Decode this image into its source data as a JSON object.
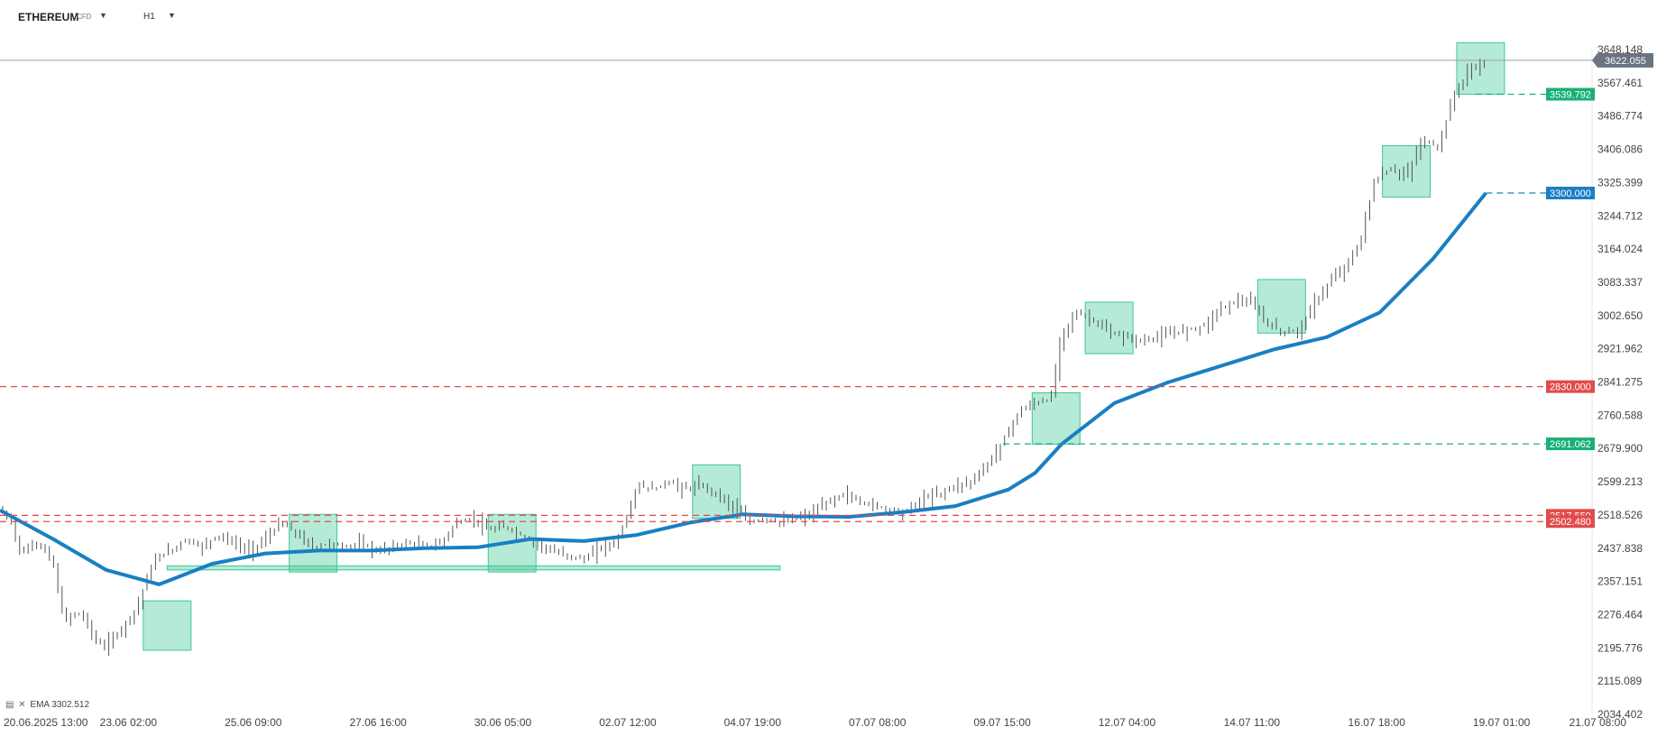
{
  "header": {
    "symbol": "ETHEREUM",
    "symbol_type": "CFD",
    "timeframe": "H1"
  },
  "legend": {
    "indicator_name": "EMA",
    "indicator_value": "3302.512"
  },
  "colors": {
    "ema": "#1a7fc4",
    "support_zone": "#3cc894",
    "resistance_line": "#e24b4b",
    "target_line": "#19b076",
    "ema_tag": "#1a7fc4",
    "current_tag": "#6b7280",
    "candle": "#444444"
  },
  "chart_data": {
    "type": "candlestick",
    "instrument": "ETHEREUM",
    "timeframe": "H1",
    "x_tick_labels": [
      "20.06.2025 13:00",
      "23.06 02:00",
      "25.06 09:00",
      "27.06 16:00",
      "30.06 05:00",
      "02.07 12:00",
      "04.07 19:00",
      "07.07 08:00",
      "09.07 15:00",
      "12.07 04:00",
      "14.07 11:00",
      "16.07 18:00",
      "19.07 01:00",
      "21.07 08:00"
    ],
    "y_tick_labels": [
      "3648.148",
      "3567.461",
      "3486.774",
      "3406.086",
      "3325.399",
      "3244.712",
      "3164.024",
      "3083.337",
      "3002.650",
      "2921.962",
      "2841.275",
      "2760.588",
      "2679.900",
      "2599.213",
      "2518.526",
      "2437.838",
      "2357.151",
      "2276.464",
      "2195.776",
      "2115.089",
      "2034.402"
    ],
    "ylim": [
      2034.402,
      3648.148
    ],
    "current_price": "3622.055",
    "price_path": [
      [
        0,
        2530
      ],
      [
        4,
        2505
      ],
      [
        8,
        2420
      ],
      [
        12,
        2450
      ],
      [
        16,
        2440
      ],
      [
        20,
        2400
      ],
      [
        24,
        2260
      ],
      [
        28,
        2280
      ],
      [
        32,
        2270
      ],
      [
        36,
        2210
      ],
      [
        40,
        2200
      ],
      [
        44,
        2230
      ],
      [
        48,
        2260
      ],
      [
        52,
        2300
      ],
      [
        56,
        2380
      ],
      [
        60,
        2420
      ],
      [
        64,
        2430
      ],
      [
        70,
        2460
      ],
      [
        76,
        2440
      ],
      [
        82,
        2470
      ],
      [
        88,
        2450
      ],
      [
        94,
        2430
      ],
      [
        100,
        2460
      ],
      [
        106,
        2500
      ],
      [
        112,
        2470
      ],
      [
        118,
        2440
      ],
      [
        124,
        2450
      ],
      [
        130,
        2440
      ],
      [
        136,
        2450
      ],
      [
        142,
        2430
      ],
      [
        148,
        2440
      ],
      [
        154,
        2450
      ],
      [
        160,
        2440
      ],
      [
        166,
        2450
      ],
      [
        172,
        2500
      ],
      [
        178,
        2510
      ],
      [
        184,
        2480
      ],
      [
        190,
        2490
      ],
      [
        196,
        2470
      ],
      [
        202,
        2450
      ],
      [
        208,
        2430
      ],
      [
        214,
        2420
      ],
      [
        220,
        2410
      ],
      [
        226,
        2440
      ],
      [
        232,
        2450
      ],
      [
        236,
        2510
      ],
      [
        240,
        2590
      ],
      [
        246,
        2580
      ],
      [
        252,
        2600
      ],
      [
        258,
        2580
      ],
      [
        264,
        2590
      ],
      [
        270,
        2570
      ],
      [
        276,
        2540
      ],
      [
        282,
        2500
      ],
      [
        288,
        2510
      ],
      [
        294,
        2500
      ],
      [
        300,
        2510
      ],
      [
        306,
        2520
      ],
      [
        312,
        2550
      ],
      [
        318,
        2570
      ],
      [
        324,
        2550
      ],
      [
        330,
        2540
      ],
      [
        336,
        2530
      ],
      [
        342,
        2530
      ],
      [
        348,
        2560
      ],
      [
        354,
        2570
      ],
      [
        360,
        2590
      ],
      [
        366,
        2600
      ],
      [
        372,
        2640
      ],
      [
        378,
        2700
      ],
      [
        384,
        2770
      ],
      [
        390,
        2790
      ],
      [
        396,
        2800
      ],
      [
        400,
        2960
      ],
      [
        406,
        3010
      ],
      [
        412,
        2990
      ],
      [
        418,
        2960
      ],
      [
        424,
        2950
      ],
      [
        430,
        2940
      ],
      [
        436,
        2950
      ],
      [
        442,
        2960
      ],
      [
        448,
        2970
      ],
      [
        454,
        2980
      ],
      [
        460,
        3020
      ],
      [
        466,
        3040
      ],
      [
        472,
        3030
      ],
      [
        478,
        2980
      ],
      [
        484,
        2960
      ],
      [
        490,
        2970
      ],
      [
        496,
        3040
      ],
      [
        502,
        3090
      ],
      [
        508,
        3130
      ],
      [
        512,
        3170
      ],
      [
        518,
        3330
      ],
      [
        524,
        3360
      ],
      [
        530,
        3340
      ],
      [
        536,
        3430
      ],
      [
        542,
        3410
      ],
      [
        548,
        3540
      ],
      [
        554,
        3600
      ],
      [
        560,
        3620
      ]
    ],
    "series": [
      {
        "name": "EMA",
        "type": "line",
        "points": [
          [
            0,
            2530
          ],
          [
            20,
            2460
          ],
          [
            40,
            2385
          ],
          [
            60,
            2350
          ],
          [
            80,
            2400
          ],
          [
            100,
            2425
          ],
          [
            120,
            2432
          ],
          [
            140,
            2432
          ],
          [
            160,
            2438
          ],
          [
            180,
            2440
          ],
          [
            200,
            2460
          ],
          [
            220,
            2455
          ],
          [
            240,
            2470
          ],
          [
            260,
            2500
          ],
          [
            280,
            2520
          ],
          [
            300,
            2515
          ],
          [
            320,
            2514
          ],
          [
            340,
            2525
          ],
          [
            360,
            2540
          ],
          [
            380,
            2580
          ],
          [
            390,
            2620
          ],
          [
            400,
            2690
          ],
          [
            420,
            2790
          ],
          [
            440,
            2840
          ],
          [
            460,
            2880
          ],
          [
            480,
            2920
          ],
          [
            500,
            2950
          ],
          [
            520,
            3010
          ],
          [
            540,
            3140
          ],
          [
            560,
            3300
          ]
        ]
      }
    ],
    "price_levels": [
      {
        "value": 3539.792,
        "label": "3539.792",
        "style": "green-dashed",
        "x_start": 556
      },
      {
        "value": 3300.0,
        "label": "3300.000",
        "style": "blue-dashed",
        "x_start": 560
      },
      {
        "value": 2830.0,
        "label": "2830.000",
        "style": "red-dashed",
        "x_start": 0
      },
      {
        "value": 2691.062,
        "label": "2691.062",
        "style": "green-dashed",
        "x_start": 378
      },
      {
        "value": 2517.559,
        "label": "2517.559",
        "style": "red-dashed",
        "x_start": 0
      },
      {
        "value": 2502.48,
        "label": "2502.480",
        "style": "red-dashed",
        "x_start": 0
      }
    ],
    "zones": [
      {
        "x0": 54,
        "x1": 72,
        "y0": 2190,
        "y1": 2310
      },
      {
        "x0": 109,
        "x1": 127,
        "y0": 2380,
        "y1": 2520
      },
      {
        "x0": 184,
        "x1": 202,
        "y0": 2380,
        "y1": 2520
      },
      {
        "x0": 261,
        "x1": 279,
        "y0": 2510,
        "y1": 2640
      },
      {
        "x0": 389,
        "x1": 407,
        "y0": 2690,
        "y1": 2815
      },
      {
        "x0": 409,
        "x1": 427,
        "y0": 2910,
        "y1": 3035
      },
      {
        "x0": 474,
        "x1": 492,
        "y0": 2960,
        "y1": 3090
      },
      {
        "x0": 521,
        "x1": 539,
        "y0": 3290,
        "y1": 3415
      },
      {
        "x0": 549,
        "x1": 567,
        "y0": 3540,
        "y1": 3665
      },
      {
        "x0": 63,
        "x1": 294,
        "y0": 2385,
        "y1": 2395
      }
    ]
  }
}
